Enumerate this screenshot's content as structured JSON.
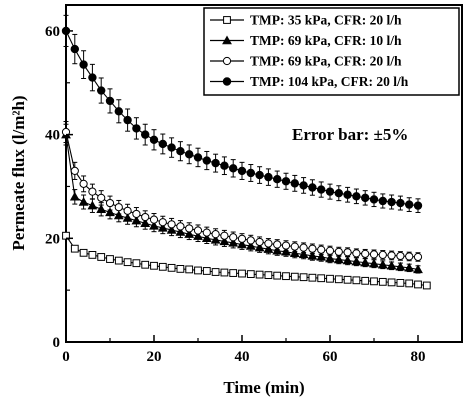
{
  "chart_data": {
    "type": "scatter",
    "xlabel": "Time (min)",
    "ylabel": "Permeate flux (l/m²h)",
    "xlim": [
      0,
      90
    ],
    "ylim": [
      0,
      65
    ],
    "x_ticks": [
      "0",
      "20",
      "40",
      "60",
      "80"
    ],
    "y_ticks": [
      "0",
      "20",
      "40",
      "60"
    ],
    "annotation": "Error bar: ±5%",
    "legend_position": "top-right",
    "error_bar_fraction": 0.05,
    "series": [
      {
        "name": "TMP: 35 kPa, CFR: 20 l/h",
        "marker": "open-square",
        "x": [
          0,
          2,
          4,
          6,
          8,
          10,
          12,
          14,
          16,
          18,
          20,
          22,
          24,
          26,
          28,
          30,
          32,
          34,
          36,
          38,
          40,
          42,
          44,
          46,
          48,
          50,
          52,
          54,
          56,
          58,
          60,
          62,
          64,
          66,
          68,
          70,
          72,
          74,
          76,
          78,
          80,
          82
        ],
        "y": [
          20.5,
          18.0,
          17.2,
          16.8,
          16.4,
          16.0,
          15.7,
          15.4,
          15.2,
          14.9,
          14.7,
          14.5,
          14.3,
          14.1,
          14.0,
          13.8,
          13.7,
          13.5,
          13.4,
          13.3,
          13.2,
          13.1,
          13.0,
          12.9,
          12.8,
          12.7,
          12.6,
          12.5,
          12.4,
          12.3,
          12.2,
          12.1,
          12.0,
          11.9,
          11.8,
          11.7,
          11.6,
          11.5,
          11.4,
          11.3,
          11.1,
          10.9
        ]
      },
      {
        "name": "TMP: 69 kPa, CFR: 10 l/h",
        "marker": "filled-triangle",
        "x": [
          0,
          2,
          4,
          6,
          8,
          10,
          12,
          14,
          16,
          18,
          20,
          22,
          24,
          26,
          28,
          30,
          32,
          34,
          36,
          38,
          40,
          42,
          44,
          46,
          48,
          50,
          52,
          54,
          56,
          58,
          60,
          62,
          64,
          66,
          68,
          70,
          72,
          74,
          76,
          78,
          80
        ],
        "y": [
          40.0,
          28.0,
          27.0,
          26.3,
          25.6,
          25.0,
          24.4,
          23.9,
          23.4,
          22.9,
          22.4,
          22.0,
          21.6,
          21.2,
          20.8,
          20.4,
          20.0,
          19.7,
          19.4,
          19.1,
          18.8,
          18.5,
          18.2,
          17.9,
          17.6,
          17.4,
          17.1,
          16.9,
          16.6,
          16.4,
          16.1,
          15.9,
          15.7,
          15.5,
          15.3,
          15.1,
          14.9,
          14.7,
          14.5,
          14.3,
          14.0
        ]
      },
      {
        "name": "TMP: 69 kPa, CFR: 20 l/h",
        "marker": "open-circle",
        "x": [
          0,
          2,
          4,
          6,
          8,
          10,
          12,
          14,
          16,
          18,
          20,
          22,
          24,
          26,
          28,
          30,
          32,
          34,
          36,
          38,
          40,
          42,
          44,
          46,
          48,
          50,
          52,
          54,
          56,
          58,
          60,
          62,
          64,
          66,
          68,
          70,
          72,
          74,
          76,
          78,
          80
        ],
        "y": [
          40.5,
          33.0,
          30.5,
          29.0,
          27.8,
          26.8,
          26.0,
          25.3,
          24.7,
          24.1,
          23.6,
          23.1,
          22.7,
          22.3,
          21.9,
          21.5,
          21.1,
          20.8,
          20.5,
          20.2,
          19.9,
          19.6,
          19.3,
          19.0,
          18.8,
          18.6,
          18.4,
          18.2,
          18.0,
          17.8,
          17.6,
          17.4,
          17.3,
          17.1,
          17.0,
          16.9,
          16.8,
          16.7,
          16.6,
          16.5,
          16.4
        ]
      },
      {
        "name": "TMP: 104 kPa, CFR: 20 l/h",
        "marker": "filled-circle",
        "x": [
          0,
          2,
          4,
          6,
          8,
          10,
          12,
          14,
          16,
          18,
          20,
          22,
          24,
          26,
          28,
          30,
          32,
          34,
          36,
          38,
          40,
          42,
          44,
          46,
          48,
          50,
          52,
          54,
          56,
          58,
          60,
          62,
          64,
          66,
          68,
          70,
          72,
          74,
          76,
          78,
          80
        ],
        "y": [
          60.0,
          56.5,
          53.5,
          51.0,
          48.5,
          46.5,
          44.5,
          42.8,
          41.2,
          40.0,
          39.0,
          38.2,
          37.5,
          36.8,
          36.2,
          35.6,
          35.0,
          34.5,
          34.0,
          33.5,
          33.0,
          32.6,
          32.2,
          31.8,
          31.4,
          31.0,
          30.6,
          30.2,
          29.8,
          29.4,
          29.0,
          28.7,
          28.4,
          28.1,
          27.8,
          27.5,
          27.2,
          27.0,
          26.8,
          26.5,
          26.3
        ]
      }
    ]
  }
}
